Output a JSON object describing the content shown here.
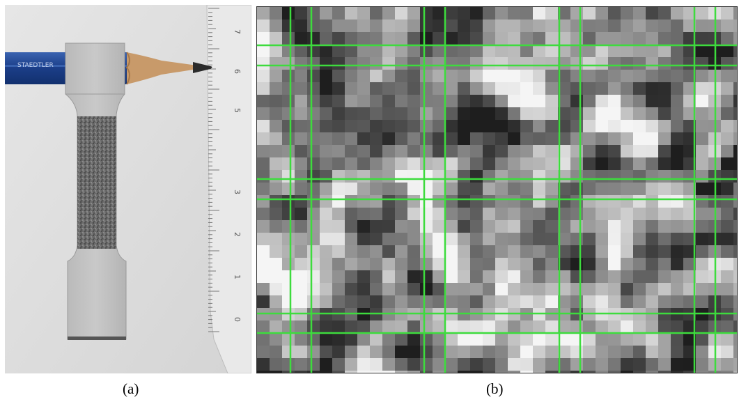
{
  "panels": [
    {
      "caption": "(a)",
      "image": "photo-of-dogbone-tensile-specimen-with-pencil-and-ruler",
      "ruler_marks": [
        "7",
        "6",
        "5",
        "3",
        "2",
        "1",
        "0"
      ],
      "pencil_text": "STAEDTLER"
    },
    {
      "caption": "(b)",
      "image": "pixelated-grayscale-speckle-pattern-with-green-grid-lines",
      "grid_color": "#3ddc3d"
    }
  ]
}
